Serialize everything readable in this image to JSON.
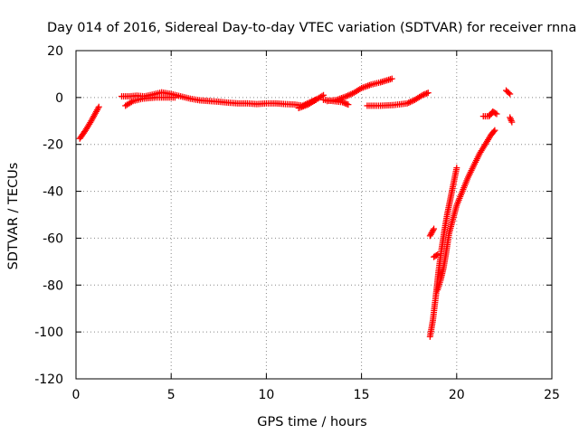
{
  "chart_data": {
    "type": "scatter",
    "title": "Day 014 of 2016, Sidereal Day-to-day VTEC variation (SDTVAR) for receiver rnna",
    "xlabel": "GPS time / hours",
    "ylabel": "SDTVAR / TECUs",
    "xlim": [
      0,
      25
    ],
    "ylim": [
      -120,
      20
    ],
    "xticks": [
      0,
      5,
      10,
      15,
      20,
      25
    ],
    "yticks": [
      20,
      0,
      -20,
      -40,
      -60,
      -80,
      -100,
      -120
    ],
    "grid": true,
    "marker": "+",
    "color": "#ff0000",
    "segments": [
      {
        "points": [
          [
            0.2,
            -17.5
          ],
          [
            0.5,
            -14
          ],
          [
            0.8,
            -10
          ],
          [
            1.2,
            -4
          ]
        ]
      },
      {
        "points": [
          [
            2.4,
            0.5
          ],
          [
            2.8,
            0.5
          ],
          [
            3.2,
            0.8
          ],
          [
            3.6,
            0.5
          ],
          [
            4.0,
            1.2
          ],
          [
            4.5,
            2.2
          ],
          [
            5.0,
            1.5
          ],
          [
            5.5,
            0.5
          ],
          [
            6.0,
            -0.5
          ],
          [
            6.5,
            -1.2
          ],
          [
            7.0,
            -1.5
          ],
          [
            7.5,
            -1.8
          ],
          [
            8.0,
            -2.2
          ],
          [
            8.5,
            -2.5
          ],
          [
            9.0,
            -2.5
          ],
          [
            9.5,
            -2.8
          ],
          [
            10.0,
            -2.5
          ],
          [
            10.5,
            -2.5
          ],
          [
            11.0,
            -2.8
          ],
          [
            11.5,
            -3.0
          ],
          [
            11.9,
            -3.5
          ],
          [
            12.3,
            -2.0
          ],
          [
            12.7,
            -0.5
          ],
          [
            13.0,
            1.0
          ]
        ]
      },
      {
        "points": [
          [
            2.6,
            -3.5
          ],
          [
            3.0,
            -1.5
          ],
          [
            3.5,
            -0.5
          ],
          [
            4.2,
            0.0
          ],
          [
            5.2,
            0.0
          ]
        ]
      },
      {
        "points": [
          [
            11.7,
            -4.5
          ],
          [
            12.2,
            -3.0
          ],
          [
            12.6,
            -1.0
          ]
        ]
      },
      {
        "points": [
          [
            13.0,
            -1.0
          ],
          [
            13.5,
            -1.5
          ],
          [
            14.0,
            -2.0
          ],
          [
            14.3,
            -3.0
          ]
        ]
      },
      {
        "points": [
          [
            13.2,
            -1.5
          ],
          [
            13.7,
            -1.0
          ],
          [
            14.2,
            0.5
          ],
          [
            14.6,
            2.0
          ],
          [
            15.0,
            4.0
          ],
          [
            15.5,
            5.5
          ],
          [
            16.0,
            6.5
          ],
          [
            16.6,
            8.0
          ]
        ]
      },
      {
        "points": [
          [
            15.3,
            -3.5
          ],
          [
            16.0,
            -3.5
          ],
          [
            16.7,
            -3.2
          ],
          [
            17.4,
            -2.5
          ],
          [
            17.8,
            -1.0
          ],
          [
            18.2,
            1.0
          ],
          [
            18.5,
            2.0
          ]
        ]
      },
      {
        "points": [
          [
            18.6,
            -102
          ],
          [
            18.75,
            -95
          ],
          [
            18.9,
            -85
          ],
          [
            19.05,
            -74
          ],
          [
            19.2,
            -65
          ],
          [
            19.35,
            -57
          ],
          [
            19.5,
            -50
          ],
          [
            19.65,
            -44
          ],
          [
            19.8,
            -38
          ],
          [
            20.0,
            -30
          ]
        ]
      },
      {
        "points": [
          [
            18.6,
            -59
          ],
          [
            18.8,
            -56
          ]
        ]
      },
      {
        "points": [
          [
            18.8,
            -68
          ],
          [
            19.0,
            -67
          ]
        ]
      },
      {
        "points": [
          [
            19.0,
            -82
          ],
          [
            19.15,
            -78
          ],
          [
            19.3,
            -73
          ],
          [
            19.45,
            -66
          ],
          [
            19.6,
            -58
          ],
          [
            19.8,
            -52
          ],
          [
            20.0,
            -46
          ],
          [
            20.3,
            -40
          ],
          [
            20.6,
            -34
          ],
          [
            20.9,
            -29
          ],
          [
            21.2,
            -24
          ],
          [
            21.5,
            -20
          ],
          [
            21.8,
            -16
          ],
          [
            22.0,
            -14
          ]
        ]
      },
      {
        "points": [
          [
            21.4,
            -8
          ],
          [
            21.7,
            -8
          ],
          [
            21.9,
            -6
          ],
          [
            22.1,
            -7
          ]
        ]
      },
      {
        "points": [
          [
            22.6,
            3.0
          ],
          [
            22.8,
            1.5
          ]
        ]
      },
      {
        "points": [
          [
            22.8,
            -8.5
          ],
          [
            22.9,
            -10.5
          ]
        ]
      }
    ]
  }
}
